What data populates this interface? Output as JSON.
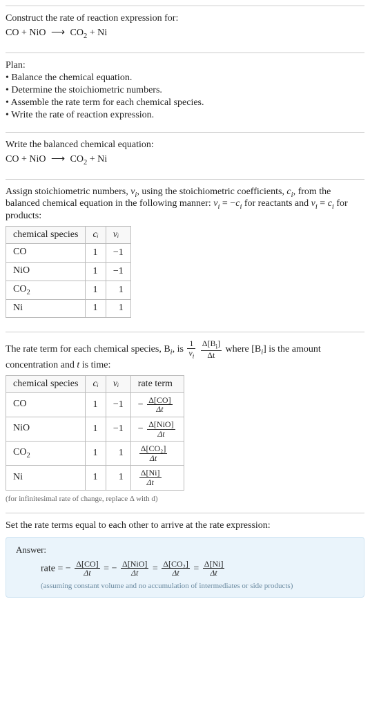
{
  "intro": {
    "line1": "Construct the rate of reaction expression for:",
    "equation_lhs": "CO + NiO",
    "arrow": "⟶",
    "equation_rhs_a": "CO",
    "equation_rhs_a_sub": "2",
    "equation_rhs_b": " + Ni"
  },
  "plan": {
    "heading": "Plan:",
    "bullets": [
      "• Balance the chemical equation.",
      "• Determine the stoichiometric numbers.",
      "• Assemble the rate term for each chemical species.",
      "• Write the rate of reaction expression."
    ]
  },
  "balanced": {
    "line1": "Write the balanced chemical equation:",
    "equation_lhs": "CO + NiO",
    "arrow": "⟶",
    "equation_rhs_a": "CO",
    "equation_rhs_a_sub": "2",
    "equation_rhs_b": " + Ni"
  },
  "stoich": {
    "text_a": "Assign stoichiometric numbers, ",
    "nu_i": "ν",
    "nu_i_sub": "i",
    "text_b": ", using the stoichiometric coefficients, ",
    "c_i": "c",
    "c_i_sub": "i",
    "text_c": ", from the balanced chemical equation in the following manner: ",
    "rel1_lhs": "ν",
    "rel1_lhs_sub": "i",
    "rel1_mid": " = −",
    "rel1_rhs": "c",
    "rel1_rhs_sub": "i",
    "text_d": " for reactants and ",
    "rel2_lhs": "ν",
    "rel2_lhs_sub": "i",
    "rel2_mid": " = ",
    "rel2_rhs": "c",
    "rel2_rhs_sub": "i",
    "text_e": " for products:",
    "table": {
      "headers": [
        "chemical species",
        "cᵢ",
        "νᵢ"
      ],
      "rows": [
        {
          "species": "CO",
          "sub": "",
          "c": "1",
          "nu": "−1"
        },
        {
          "species": "NiO",
          "sub": "",
          "c": "1",
          "nu": "−1"
        },
        {
          "species": "CO",
          "sub": "2",
          "c": "1",
          "nu": "1"
        },
        {
          "species": "Ni",
          "sub": "",
          "c": "1",
          "nu": "1"
        }
      ]
    }
  },
  "rate": {
    "text_a": "The rate term for each chemical species, B",
    "B_sub": "i",
    "text_b": ", is ",
    "frac1_num": "1",
    "frac1_den_a": "ν",
    "frac1_den_sub": "i",
    "frac2_num_a": "Δ[B",
    "frac2_num_sub": "i",
    "frac2_num_b": "]",
    "frac2_den": "Δt",
    "text_c": " where [B",
    "text_c_sub": "i",
    "text_d": "] is the amount concentration and ",
    "t_var": "t",
    "text_e": " is time:",
    "table": {
      "headers": [
        "chemical species",
        "cᵢ",
        "νᵢ",
        "rate term"
      ],
      "rows": [
        {
          "species": "CO",
          "sub": "",
          "c": "1",
          "nu": "−1",
          "sign": "−",
          "conc": "Δ[CO]",
          "den": "Δt"
        },
        {
          "species": "NiO",
          "sub": "",
          "c": "1",
          "nu": "−1",
          "sign": "−",
          "conc": "Δ[NiO]",
          "den": "Δt"
        },
        {
          "species": "CO",
          "sub": "2",
          "c": "1",
          "nu": "1",
          "sign": "",
          "conc": "Δ[CO₂]",
          "den": "Δt"
        },
        {
          "species": "Ni",
          "sub": "",
          "c": "1",
          "nu": "1",
          "sign": "",
          "conc": "Δ[Ni]",
          "den": "Δt"
        }
      ]
    },
    "note": "(for infinitesimal rate of change, replace Δ with d)"
  },
  "final": {
    "text": "Set the rate terms equal to each other to arrive at the rate expression:"
  },
  "answer": {
    "label": "Answer:",
    "prefix": "rate = ",
    "terms": [
      {
        "sign": "−",
        "num": "Δ[CO]",
        "den": "Δt"
      },
      {
        "sign": "−",
        "num": "Δ[NiO]",
        "den": "Δt"
      },
      {
        "sign": "",
        "num": "Δ[CO₂]",
        "den": "Δt"
      },
      {
        "sign": "",
        "num": "Δ[Ni]",
        "den": "Δt"
      }
    ],
    "eq": " = ",
    "note": "(assuming constant volume and no accumulation of intermediates or side products)"
  },
  "colors": {
    "text": "#222222",
    "border": "#cccccc",
    "table_border": "#bbbbbb",
    "answer_bg": "#eaf4fb",
    "answer_border": "#cde3f2",
    "note": "#666666",
    "answer_note": "#6a8aa0"
  }
}
